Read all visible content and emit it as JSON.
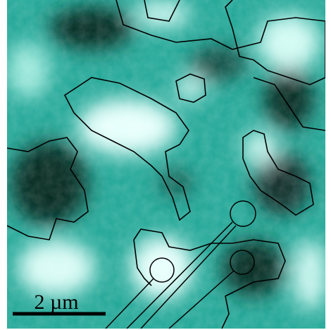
{
  "scale_bar": {
    "label": "2 µm"
  }
}
